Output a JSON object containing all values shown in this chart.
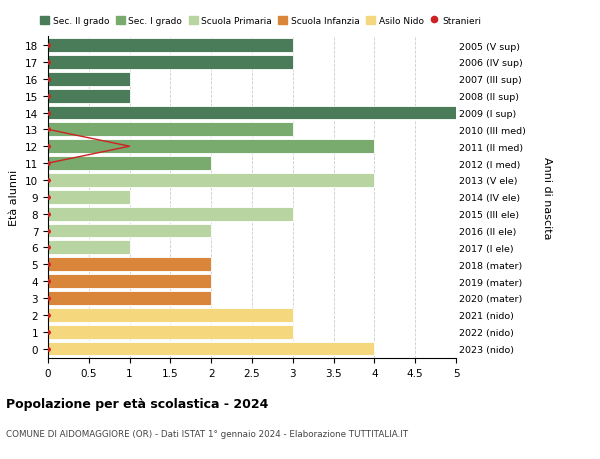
{
  "ages": [
    18,
    17,
    16,
    15,
    14,
    13,
    12,
    11,
    10,
    9,
    8,
    7,
    6,
    5,
    4,
    3,
    2,
    1,
    0
  ],
  "right_labels": [
    "2005 (V sup)",
    "2006 (IV sup)",
    "2007 (III sup)",
    "2008 (II sup)",
    "2009 (I sup)",
    "2010 (III med)",
    "2011 (II med)",
    "2012 (I med)",
    "2013 (V ele)",
    "2014 (IV ele)",
    "2015 (III ele)",
    "2016 (II ele)",
    "2017 (I ele)",
    "2018 (mater)",
    "2019 (mater)",
    "2020 (mater)",
    "2021 (nido)",
    "2022 (nido)",
    "2023 (nido)"
  ],
  "bar_values": [
    3,
    3,
    1,
    1,
    5,
    3,
    4,
    2,
    4,
    1,
    3,
    2,
    1,
    2,
    2,
    2,
    3,
    3,
    4
  ],
  "bar_colors": [
    "#4a7c59",
    "#4a7c59",
    "#4a7c59",
    "#4a7c59",
    "#4a7c59",
    "#7aab6e",
    "#7aab6e",
    "#7aab6e",
    "#b8d4a0",
    "#b8d4a0",
    "#b8d4a0",
    "#b8d4a0",
    "#b8d4a0",
    "#d9863a",
    "#d9863a",
    "#d9863a",
    "#f5d87e",
    "#f5d87e",
    "#f5d87e"
  ],
  "line_ages": [
    13,
    12,
    11
  ],
  "line_x": [
    0,
    1,
    0
  ],
  "color_sec2": "#4a7c59",
  "color_sec1": "#7aab6e",
  "color_prim": "#b8d4a0",
  "color_infanzia": "#d9863a",
  "color_nido": "#f5d87e",
  "color_stranieri": "#cc2222",
  "xlim": [
    0,
    5.0
  ],
  "xticks": [
    0,
    0.5,
    1.0,
    1.5,
    2.0,
    2.5,
    3.0,
    3.5,
    4.0,
    4.5,
    5.0
  ],
  "ylabel_left": "Età alunni",
  "ylabel_right": "Anni di nascita",
  "title": "Popolazione per età scolastica - 2024",
  "subtitle": "COMUNE DI AIDOMAGGIORE (OR) - Dati ISTAT 1° gennaio 2024 - Elaborazione TUTTITALIA.IT",
  "bg_color": "#ffffff",
  "bar_height": 0.82,
  "grid_color": "#cccccc"
}
